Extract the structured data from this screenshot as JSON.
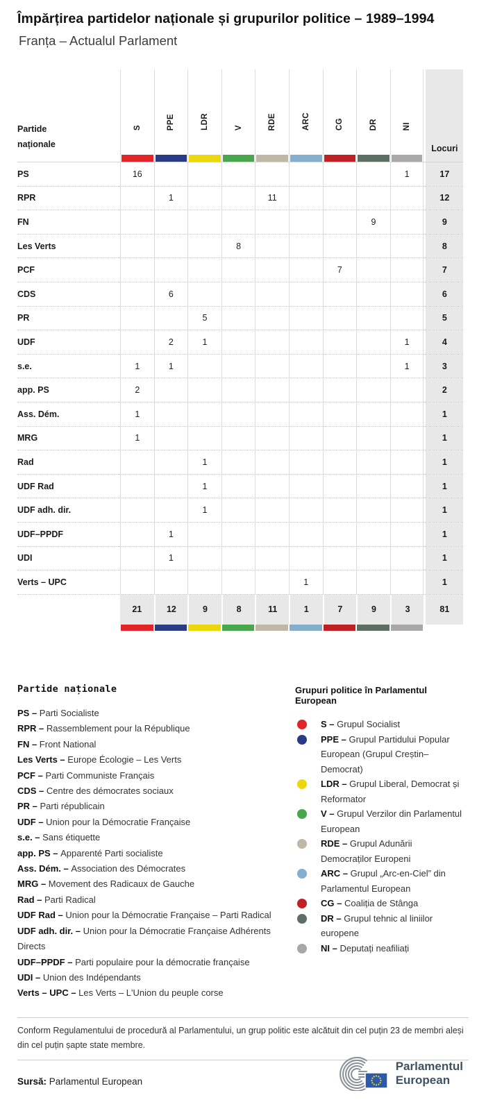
{
  "title": "Împărțirea partidelor naționale și grupurilor politice – 1989–1994",
  "subtitle": "Franța – Actualul Parlament",
  "table_ui": {
    "row_header_line1": "Partide",
    "row_header_line2": "naționale",
    "seats_label": "Locuri"
  },
  "groups": [
    {
      "code": "S",
      "color": "#e02428",
      "name": "Grupul Socialist"
    },
    {
      "code": "PPE",
      "color": "#2a3b85",
      "name": "Grupul Partidului Popular European (Grupul Creștin–Democrat)"
    },
    {
      "code": "LDR",
      "color": "#ecd70c",
      "name": "Grupul Liberal, Democrat și Reformator"
    },
    {
      "code": "V",
      "color": "#48a74c",
      "name": "Grupul Verzilor din Parlamentul European"
    },
    {
      "code": "RDE",
      "color": "#c0b8a7",
      "name": "Grupul Adunării Democraților Europeni"
    },
    {
      "code": "ARC",
      "color": "#84aecb",
      "name": "Grupul „Arc-en-Ciel” din Parlamentul European"
    },
    {
      "code": "CG",
      "color": "#c01f24",
      "name": "Coaliția de Stânga"
    },
    {
      "code": "DR",
      "color": "#5b6f64",
      "name": "Grupul tehnic al liniilor europene"
    },
    {
      "code": "NI",
      "color": "#a8a8a8",
      "name": "Deputați neafiliați"
    }
  ],
  "chart_data": {
    "type": "table",
    "title": "Împărțirea partidelor naționale și grupurilor politice – 1989–1994",
    "subtitle": "Franța – Actualul Parlament",
    "columns": [
      "S",
      "PPE",
      "LDR",
      "V",
      "RDE",
      "ARC",
      "CG",
      "DR",
      "NI"
    ],
    "rows": [
      {
        "party": "PS",
        "seats": {
          "S": 16,
          "NI": 1
        },
        "total": 17
      },
      {
        "party": "RPR",
        "seats": {
          "PPE": 1,
          "RDE": 11
        },
        "total": 12
      },
      {
        "party": "FN",
        "seats": {
          "DR": 9
        },
        "total": 9
      },
      {
        "party": "Les Verts",
        "seats": {
          "V": 8
        },
        "total": 8
      },
      {
        "party": "PCF",
        "seats": {
          "CG": 7
        },
        "total": 7
      },
      {
        "party": "CDS",
        "seats": {
          "PPE": 6
        },
        "total": 6
      },
      {
        "party": "PR",
        "seats": {
          "LDR": 5
        },
        "total": 5
      },
      {
        "party": "UDF",
        "seats": {
          "PPE": 2,
          "LDR": 1,
          "NI": 1
        },
        "total": 4
      },
      {
        "party": "s.e.",
        "seats": {
          "S": 1,
          "PPE": 1,
          "NI": 1
        },
        "total": 3
      },
      {
        "party": "app. PS",
        "seats": {
          "S": 2
        },
        "total": 2
      },
      {
        "party": "Ass. Dém.",
        "seats": {
          "S": 1
        },
        "total": 1
      },
      {
        "party": "MRG",
        "seats": {
          "S": 1
        },
        "total": 1
      },
      {
        "party": "Rad",
        "seats": {
          "LDR": 1
        },
        "total": 1
      },
      {
        "party": "UDF Rad",
        "seats": {
          "LDR": 1
        },
        "total": 1
      },
      {
        "party": "UDF adh. dir.",
        "seats": {
          "LDR": 1
        },
        "total": 1
      },
      {
        "party": "UDF–PPDF",
        "seats": {
          "PPE": 1
        },
        "total": 1
      },
      {
        "party": "UDI",
        "seats": {
          "PPE": 1
        },
        "total": 1
      },
      {
        "party": "Verts – UPC",
        "seats": {
          "ARC": 1
        },
        "total": 1
      }
    ],
    "column_totals": {
      "S": 21,
      "PPE": 12,
      "LDR": 9,
      "V": 8,
      "RDE": 11,
      "ARC": 1,
      "CG": 7,
      "DR": 9,
      "NI": 3
    },
    "grand_total": 81
  },
  "party_legend": {
    "title": "Partide naționale",
    "items": [
      {
        "abbr": "PS",
        "name": "Parti Socialiste"
      },
      {
        "abbr": "RPR",
        "name": "Rassemblement pour la République"
      },
      {
        "abbr": "FN",
        "name": "Front National"
      },
      {
        "abbr": "Les Verts",
        "name": "Europe Écologie – Les Verts"
      },
      {
        "abbr": "PCF",
        "name": "Parti Communiste Français"
      },
      {
        "abbr": "CDS",
        "name": "Centre des démocrates sociaux"
      },
      {
        "abbr": "PR",
        "name": "Parti républicain"
      },
      {
        "abbr": "UDF",
        "name": "Union pour la Démocratie Française"
      },
      {
        "abbr": "s.e.",
        "name": "Sans étiquette"
      },
      {
        "abbr": "app. PS",
        "name": "Apparenté Parti socialiste"
      },
      {
        "abbr": "Ass. Dém.",
        "name": "Association des Démocrates"
      },
      {
        "abbr": "MRG",
        "name": "Movement des Radicaux de Gauche"
      },
      {
        "abbr": "Rad",
        "name": "Parti Radical"
      },
      {
        "abbr": "UDF Rad",
        "name": "Union pour la Démocratie Française – Parti Radical"
      },
      {
        "abbr": "UDF adh. dir.",
        "name": "Union pour la Démocratie Française Adhérents Directs"
      },
      {
        "abbr": "UDF–PPDF",
        "name": "Parti populaire pour la démocratie française"
      },
      {
        "abbr": "UDI",
        "name": "Union des Indépendants"
      },
      {
        "abbr": "Verts – UPC",
        "name": "Les Verts – L'Union du peuple corse"
      }
    ]
  },
  "group_legend": {
    "title": "Grupuri politice în Parlamentul European"
  },
  "note": "Conform Regulamentului de procedură al Parlamentului, un grup politic este alcătuit din cel puțin 23 de membri aleși din cel puțin șapte state membre.",
  "footer": {
    "source_label": "Sursă:",
    "source_name": "Parlamentul European",
    "logo_line1": "Parlamentul",
    "logo_line2": "European"
  }
}
